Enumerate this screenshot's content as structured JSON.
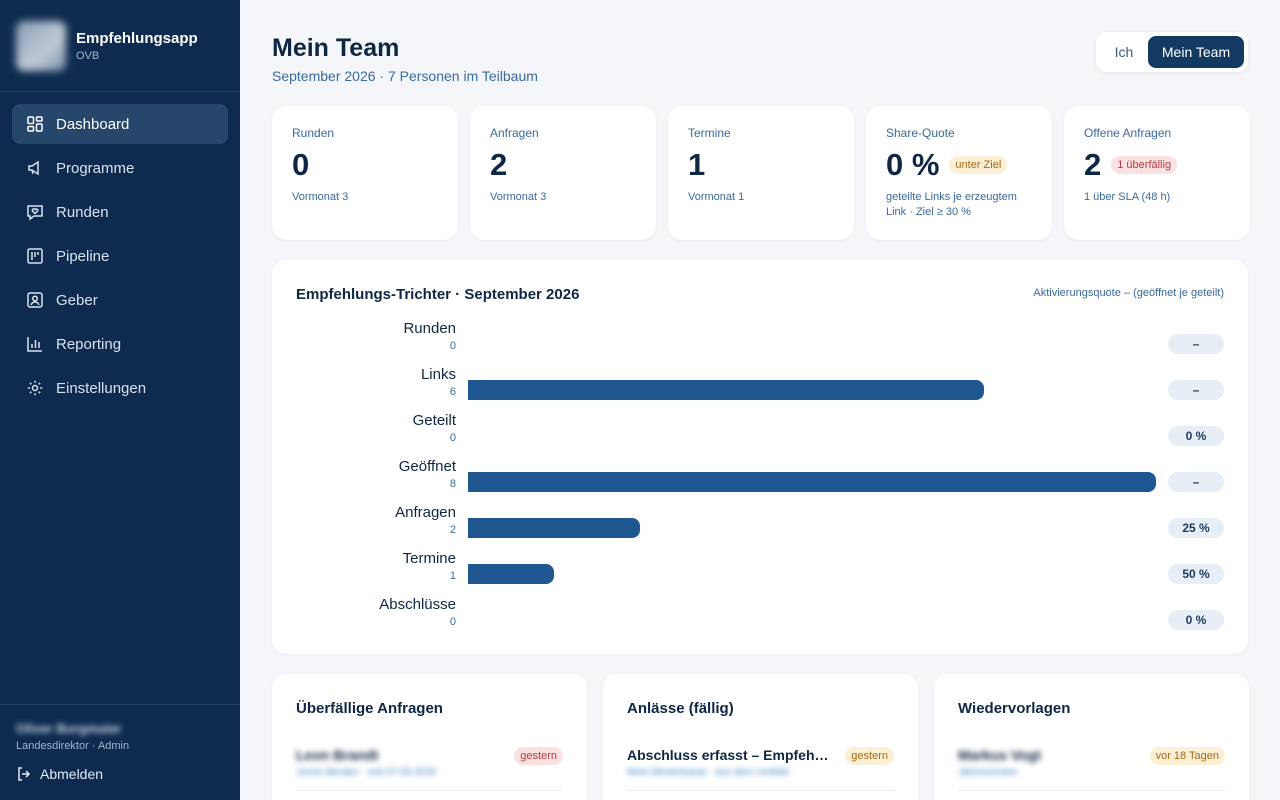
{
  "brand": {
    "title": "Empfehlungsapp",
    "subtitle": "OVB"
  },
  "nav": [
    {
      "label": "Dashboard",
      "icon": "dashboard-icon",
      "active": true
    },
    {
      "label": "Programme",
      "icon": "megaphone-icon"
    },
    {
      "label": "Runden",
      "icon": "heart-message-icon"
    },
    {
      "label": "Pipeline",
      "icon": "pipeline-icon"
    },
    {
      "label": "Geber",
      "icon": "user-card-icon"
    },
    {
      "label": "Reporting",
      "icon": "bar-chart-icon"
    },
    {
      "label": "Einstellungen",
      "icon": "gear-icon"
    }
  ],
  "user": {
    "name": "Oliver Burgmaier",
    "role": "Landesdirektor · Admin",
    "logout": "Abmelden"
  },
  "header": {
    "title": "Mein Team",
    "subtitle": "September 2026 · 7 Personen im Teilbaum",
    "toggle_me": "Ich",
    "toggle_team": "Mein Team"
  },
  "kpis": [
    {
      "label": "Runden",
      "value": "0",
      "note": "Vormonat 3"
    },
    {
      "label": "Anfragen",
      "value": "2",
      "note": "Vormonat 3"
    },
    {
      "label": "Termine",
      "value": "1",
      "note": "Vormonat 1"
    },
    {
      "label": "Share-Quote",
      "value": "0 %",
      "badge": "unter Ziel",
      "note": "geteilte Links je erzeugtem Link · Ziel ≥ 30 %"
    },
    {
      "label": "Offene Anfragen",
      "value": "2",
      "badge": "1 überfällig",
      "note": "1 über SLA (48 h)"
    }
  ],
  "funnel": {
    "title": "Empfehlungs-Trichter · September 2026",
    "hint": "Aktivierungsquote – (geöffnet je geteilt)",
    "max": 8,
    "stages": [
      {
        "label": "Runden",
        "count": 0,
        "count_text": "0",
        "rate": "–"
      },
      {
        "label": "Links",
        "count": 6,
        "count_text": "6",
        "rate": "–"
      },
      {
        "label": "Geteilt",
        "count": 0,
        "count_text": "0",
        "rate": "0 %"
      },
      {
        "label": "Geöffnet",
        "count": 8,
        "count_text": "8",
        "rate": "–"
      },
      {
        "label": "Anfragen",
        "count": 2,
        "count_text": "2",
        "rate": "25 %"
      },
      {
        "label": "Termine",
        "count": 1,
        "count_text": "1",
        "rate": "50 %"
      },
      {
        "label": "Abschlüsse",
        "count": 0,
        "count_text": "0",
        "rate": "0 %"
      }
    ]
  },
  "cards": [
    {
      "title": "Überfällige Anfragen",
      "item": {
        "main": "Leon Brandt",
        "sub": "Junior Berater · seit 07.09.2026",
        "badge": "gestern",
        "badge_color": "#b83a3a",
        "badge_bg": "#fbe1e1",
        "blurred": true
      }
    },
    {
      "title": "Anlässe (fällig)",
      "item": {
        "main": "Abschluss erfasst – Empfehlung nachfassen",
        "sub": "Nina Westerkamp · aus dem Umfeld",
        "badge": "gestern",
        "badge_color": "#a86a12",
        "badge_bg": "#fbefd6",
        "blurred": false
      }
    },
    {
      "title": "Wiedervorlagen",
      "item": {
        "main": "Markus Vogt",
        "sub": "Jahresreview",
        "badge": "vor 18 Tagen",
        "badge_color": "#a86a12",
        "badge_bg": "#fbefd6",
        "blurred": true
      }
    }
  ],
  "colors": {
    "sidebar": "#0e2b4f",
    "accent": "#123a63",
    "bar": "#1f5890"
  }
}
